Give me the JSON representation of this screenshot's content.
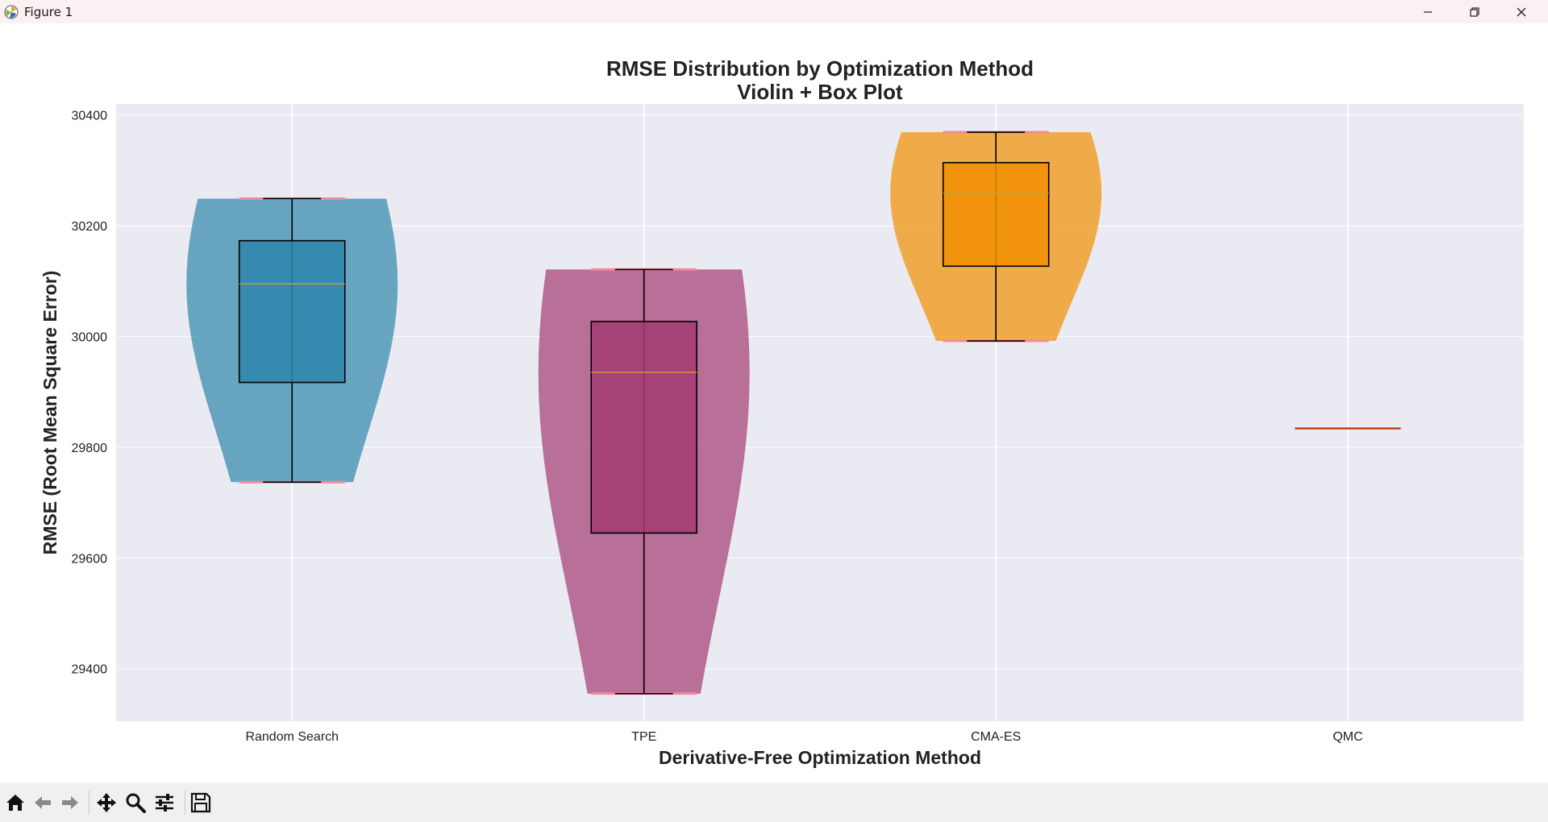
{
  "window": {
    "title": "Figure 1",
    "icons": {
      "app": "matplotlib-logo-icon",
      "minimize": "minimize-icon",
      "maximize": "restore-icon",
      "close": "close-icon"
    }
  },
  "toolbar": {
    "tools": [
      {
        "name": "home",
        "icon": "home-icon"
      },
      {
        "name": "back",
        "icon": "arrow-left-icon"
      },
      {
        "name": "forward",
        "icon": "arrow-right-icon"
      },
      {
        "name": "pan",
        "icon": "move-icon"
      },
      {
        "name": "zoom",
        "icon": "magnifier-icon"
      },
      {
        "name": "configure-subplots",
        "icon": "sliders-icon"
      },
      {
        "name": "save",
        "icon": "floppy-disk-icon"
      }
    ]
  },
  "chart_data": {
    "type": "violin+box",
    "title": "RMSE Distribution by Optimization Method",
    "subtitle": "Violin + Box Plot",
    "xlabel": "Derivative-Free Optimization Method",
    "ylabel": "RMSE (Root Mean Square Error)",
    "ylim": [
      29305,
      30420
    ],
    "yticks": [
      29400,
      29600,
      29800,
      30000,
      30200,
      30400
    ],
    "grid": true,
    "categories": [
      "Random Search",
      "TPE",
      "CMA-ES",
      "QMC"
    ],
    "series": [
      {
        "category": "Random Search",
        "min": 29737,
        "q1": 29917,
        "median": 30095,
        "q3": 30173,
        "max": 30249,
        "color": "#2e86ab"
      },
      {
        "category": "TPE",
        "min": 29355,
        "q1": 29645,
        "median": 29935,
        "q3": 30027,
        "max": 30121,
        "color": "#a23b72"
      },
      {
        "category": "CMA-ES",
        "min": 29992,
        "q1": 30127,
        "median": 30259,
        "q3": 30314,
        "max": 30369,
        "color": "#f18f01"
      },
      {
        "category": "QMC",
        "min": 29834,
        "q1": 29834,
        "median": 29834,
        "q3": 29834,
        "max": 29834,
        "color": "#c73e1d"
      }
    ],
    "colors": {
      "axes_bg": "#eaeaf2",
      "grid": "#ffffff",
      "violin_extrema": "#f08aa0",
      "median_line": "#c8a040",
      "whisker": "#000000"
    }
  }
}
